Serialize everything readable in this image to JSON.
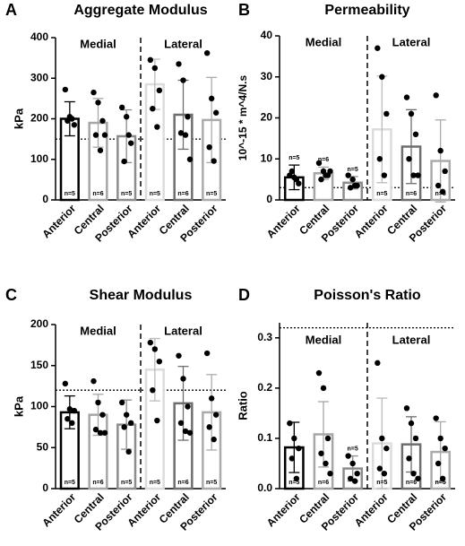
{
  "chart_data": [
    {
      "type": "bar",
      "panel": "A",
      "title": "Aggregate Modulus",
      "ylabel": "kPa",
      "groups": [
        "Medial",
        "Lateral"
      ],
      "categories": [
        "Anterior",
        "Central",
        "Posterior",
        "Anterior",
        "Central",
        "Posterior"
      ],
      "values": [
        200,
        190,
        157,
        285,
        210,
        197
      ],
      "errors": [
        42,
        60,
        65,
        62,
        85,
        105
      ],
      "colors": [
        "#000000",
        "#a6a6a6",
        "#8c8c8c",
        "#dcdcdc",
        "#6e6e6e",
        "#ababab"
      ],
      "n_labels": [
        "n=5",
        "n=6",
        "n=5",
        "n=5",
        "n=6",
        "n=5"
      ],
      "points": [
        [
          272,
          205,
          185,
          195,
          200
        ],
        [
          265,
          240,
          195,
          160,
          122,
          160
        ],
        [
          228,
          205,
          140,
          95,
          160
        ],
        [
          345,
          325,
          270,
          225,
          180
        ],
        [
          335,
          295,
          205,
          165,
          160,
          100
        ],
        [
          362,
          250,
          215,
          130,
          96
        ]
      ],
      "reference_line": 150,
      "ylim": [
        0,
        400
      ],
      "yticks": [
        0,
        100,
        200,
        300,
        400
      ]
    },
    {
      "type": "bar",
      "panel": "B",
      "title": "Permeability",
      "ylabel": "10^-15 * m^4/N.s",
      "groups": [
        "Medial",
        "Lateral"
      ],
      "categories": [
        "Anterior",
        "Central",
        "Posterior",
        "Anterior",
        "Central",
        "Posterior"
      ],
      "values": [
        5.5,
        6.5,
        4.2,
        17.2,
        13,
        9.5
      ],
      "errors": [
        3,
        1.5,
        1.5,
        13,
        9,
        10
      ],
      "colors": [
        "#000000",
        "#a6a6a6",
        "#8c8c8c",
        "#dcdcdc",
        "#6e6e6e",
        "#ababab"
      ],
      "n_labels": [
        "n=5",
        "n=6",
        "n=5",
        "n=5",
        "n=6",
        "n=5"
      ],
      "points": [
        [
          6,
          5.5,
          4,
          7,
          5
        ],
        [
          9,
          7,
          6,
          5,
          6,
          7
        ],
        [
          6,
          5,
          3.5,
          3,
          3.5
        ],
        [
          37,
          30,
          21,
          10,
          6
        ],
        [
          25,
          21,
          16,
          10,
          6,
          6
        ],
        [
          25.5,
          12,
          7,
          3.5,
          2
        ]
      ],
      "reference_line": 3,
      "ylim": [
        0,
        40
      ],
      "yticks": [
        0,
        10,
        20,
        30,
        40
      ]
    },
    {
      "type": "bar",
      "panel": "C",
      "title": "Shear Modulus",
      "ylabel": "kPa",
      "groups": [
        "Medial",
        "Lateral"
      ],
      "categories": [
        "Anterior",
        "Central",
        "Posterior",
        "Anterior",
        "Central",
        "Posterior"
      ],
      "values": [
        93,
        90,
        78,
        145,
        104,
        93
      ],
      "errors": [
        20,
        25,
        30,
        38,
        45,
        46
      ],
      "colors": [
        "#000000",
        "#a6a6a6",
        "#8c8c8c",
        "#dcdcdc",
        "#6e6e6e",
        "#ababab"
      ],
      "n_labels": [
        "n=5",
        "n=6",
        "n=5",
        "n=5",
        "n=6",
        "n=5"
      ],
      "points": [
        [
          128,
          97,
          95,
          85,
          80
        ],
        [
          131,
          105,
          90,
          72,
          68,
          68
        ],
        [
          105,
          90,
          80,
          75,
          45
        ],
        [
          178,
          170,
          155,
          120,
          83
        ],
        [
          162,
          134,
          100,
          80,
          70,
          68
        ],
        [
          165,
          110,
          90,
          75,
          60
        ]
      ],
      "reference_line": 120,
      "ylim": [
        0,
        200
      ],
      "yticks": [
        0,
        50,
        100,
        150,
        200
      ]
    },
    {
      "type": "bar",
      "panel": "D",
      "title": "Poisson's Ratio",
      "ylabel": "Ratio",
      "groups": [
        "Medial",
        "Lateral"
      ],
      "categories": [
        "Anterior",
        "Central",
        "Posterior",
        "Anterior",
        "Central",
        "Posterior"
      ],
      "values": [
        0.082,
        0.108,
        0.04,
        0.09,
        0.088,
        0.073
      ],
      "errors": [
        0.05,
        0.065,
        0.025,
        0.09,
        0.055,
        0.06
      ],
      "colors": [
        "#000000",
        "#a6a6a6",
        "#8c8c8c",
        "#dcdcdc",
        "#6e6e6e",
        "#ababab"
      ],
      "n_labels": [
        "n=5",
        "n=6",
        "n=5",
        "n=5",
        "n=6",
        "n=5"
      ],
      "points": [
        [
          0.13,
          0.1,
          0.08,
          0.06,
          0.02
        ],
        [
          0.23,
          0.2,
          0.1,
          0.07,
          0.05,
          0.03
        ],
        [
          0.065,
          0.05,
          0.03,
          0.02,
          0.015
        ],
        [
          0.25,
          0.1,
          0.08,
          0.04,
          0.03
        ],
        [
          0.16,
          0.13,
          0.1,
          0.06,
          0.03,
          0.02
        ],
        [
          0.14,
          0.1,
          0.08,
          0.05,
          0.02
        ]
      ],
      "reference_line": 0.32,
      "ylim": [
        0,
        0.33
      ],
      "yticks": [
        {
          "value": 0,
          "label": "0.0"
        },
        0.1,
        0.2,
        0.3
      ]
    }
  ]
}
